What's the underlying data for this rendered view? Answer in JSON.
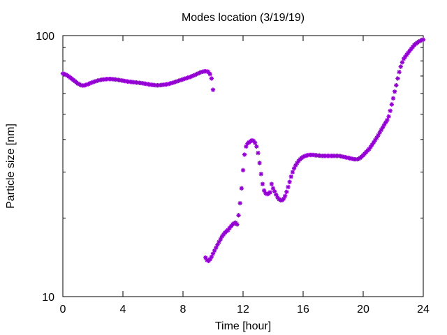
{
  "chart_data": {
    "type": "scatter",
    "title": "Modes location (3/19/19)",
    "xlabel": "Time [hour]",
    "ylabel": "Particle size [nm]",
    "xlim": [
      0,
      24
    ],
    "ylim": [
      10,
      100
    ],
    "yscale": "log",
    "xticks": [
      0,
      4,
      8,
      12,
      16,
      20,
      24
    ],
    "xtick_labels": [
      "0",
      "4",
      "8",
      "12",
      "16",
      "20",
      "24"
    ],
    "yticks": [
      10,
      100
    ],
    "ytick_labels": [
      "10",
      "100"
    ],
    "grid": false,
    "legend": "none",
    "marker_color": "#9400d3",
    "series": [
      {
        "points": [
          [
            0.0,
            71.5
          ],
          [
            0.1,
            71.3
          ],
          [
            0.2,
            70.8
          ],
          [
            0.3,
            70.3
          ],
          [
            0.4,
            69.7
          ],
          [
            0.5,
            69.0
          ],
          [
            0.6,
            68.3
          ],
          [
            0.7,
            67.6
          ],
          [
            0.8,
            66.9
          ],
          [
            0.9,
            66.2
          ],
          [
            1.0,
            65.5
          ],
          [
            1.1,
            65.0
          ],
          [
            1.2,
            64.6
          ],
          [
            1.3,
            64.4
          ],
          [
            1.4,
            64.4
          ],
          [
            1.5,
            64.6
          ],
          [
            1.6,
            64.9
          ],
          [
            1.7,
            65.2
          ],
          [
            1.8,
            65.6
          ],
          [
            1.9,
            66.0
          ],
          [
            2.0,
            66.3
          ],
          [
            2.1,
            66.6
          ],
          [
            2.2,
            66.9
          ],
          [
            2.3,
            67.2
          ],
          [
            2.4,
            67.4
          ],
          [
            2.5,
            67.6
          ],
          [
            2.6,
            67.8
          ],
          [
            2.7,
            67.9
          ],
          [
            2.8,
            68.0
          ],
          [
            2.9,
            68.1
          ],
          [
            3.0,
            68.2
          ],
          [
            3.1,
            68.2
          ],
          [
            3.2,
            68.2
          ],
          [
            3.3,
            68.1
          ],
          [
            3.4,
            68.0
          ],
          [
            3.5,
            67.9
          ],
          [
            3.6,
            67.8
          ],
          [
            3.7,
            67.6
          ],
          [
            3.8,
            67.5
          ],
          [
            3.9,
            67.3
          ],
          [
            4.0,
            67.2
          ],
          [
            4.1,
            67.0
          ],
          [
            4.2,
            66.9
          ],
          [
            4.3,
            66.7
          ],
          [
            4.4,
            66.6
          ],
          [
            4.5,
            66.5
          ],
          [
            4.6,
            66.4
          ],
          [
            4.7,
            66.3
          ],
          [
            4.8,
            66.2
          ],
          [
            4.9,
            66.1
          ],
          [
            5.0,
            66.0
          ],
          [
            5.1,
            65.9
          ],
          [
            5.2,
            65.8
          ],
          [
            5.3,
            65.7
          ],
          [
            5.4,
            65.5
          ],
          [
            5.5,
            65.4
          ],
          [
            5.6,
            65.2
          ],
          [
            5.7,
            65.1
          ],
          [
            5.8,
            64.9
          ],
          [
            5.9,
            64.8
          ],
          [
            6.0,
            64.7
          ],
          [
            6.1,
            64.6
          ],
          [
            6.2,
            64.5
          ],
          [
            6.3,
            64.5
          ],
          [
            6.4,
            64.5
          ],
          [
            6.5,
            64.6
          ],
          [
            6.6,
            64.7
          ],
          [
            6.7,
            64.8
          ],
          [
            6.8,
            64.9
          ],
          [
            6.9,
            65.0
          ],
          [
            7.0,
            65.2
          ],
          [
            7.1,
            65.4
          ],
          [
            7.2,
            65.7
          ],
          [
            7.3,
            65.9
          ],
          [
            7.4,
            66.2
          ],
          [
            7.5,
            66.5
          ],
          [
            7.6,
            66.8
          ],
          [
            7.7,
            67.1
          ],
          [
            7.8,
            67.4
          ],
          [
            7.9,
            67.7
          ],
          [
            8.0,
            68.0
          ],
          [
            8.1,
            68.3
          ],
          [
            8.2,
            68.6
          ],
          [
            8.3,
            68.9
          ],
          [
            8.4,
            69.2
          ],
          [
            8.5,
            69.5
          ],
          [
            8.6,
            69.9
          ],
          [
            8.7,
            70.3
          ],
          [
            8.8,
            70.7
          ],
          [
            8.9,
            71.1
          ],
          [
            9.0,
            71.6
          ],
          [
            9.1,
            72.0
          ],
          [
            9.2,
            72.4
          ],
          [
            9.3,
            72.7
          ],
          [
            9.4,
            72.9
          ],
          [
            9.5,
            73.0
          ],
          [
            9.6,
            72.9
          ],
          [
            9.7,
            72.4
          ],
          [
            9.8,
            71.2
          ],
          [
            9.9,
            68.5
          ],
          [
            10.0,
            62.0
          ],
          [
            9.5,
            14.1
          ],
          [
            9.6,
            13.8
          ],
          [
            9.7,
            13.7
          ],
          [
            9.8,
            13.9
          ],
          [
            9.9,
            14.2
          ],
          [
            10.0,
            14.6
          ],
          [
            10.1,
            15.0
          ],
          [
            10.2,
            15.4
          ],
          [
            10.3,
            15.8
          ],
          [
            10.4,
            16.2
          ],
          [
            10.5,
            16.6
          ],
          [
            10.6,
            17.0
          ],
          [
            10.7,
            17.3
          ],
          [
            10.8,
            17.6
          ],
          [
            10.9,
            17.8
          ],
          [
            11.0,
            18.0
          ],
          [
            11.1,
            18.3
          ],
          [
            11.2,
            18.6
          ],
          [
            11.3,
            18.9
          ],
          [
            11.4,
            19.1
          ],
          [
            11.5,
            19.2
          ],
          [
            11.6,
            18.9
          ],
          [
            11.7,
            20.5
          ],
          [
            11.8,
            22.8
          ],
          [
            11.9,
            26.0
          ],
          [
            12.0,
            30.5
          ],
          [
            12.1,
            35.0
          ],
          [
            12.2,
            37.6
          ],
          [
            12.3,
            38.6
          ],
          [
            12.4,
            39.0
          ],
          [
            12.5,
            39.4
          ],
          [
            12.6,
            39.7
          ],
          [
            12.7,
            39.5
          ],
          [
            12.8,
            38.8
          ],
          [
            12.9,
            37.6
          ],
          [
            13.0,
            35.5
          ],
          [
            13.1,
            32.5
          ],
          [
            13.2,
            29.5
          ],
          [
            13.3,
            27.0
          ],
          [
            13.4,
            25.5
          ],
          [
            13.5,
            24.9
          ],
          [
            13.6,
            24.7
          ],
          [
            13.7,
            24.8
          ],
          [
            13.8,
            25.1
          ],
          [
            13.9,
            27.0
          ],
          [
            14.0,
            26.0
          ],
          [
            14.1,
            25.3
          ],
          [
            14.2,
            24.6
          ],
          [
            14.3,
            24.0
          ],
          [
            14.4,
            23.6
          ],
          [
            14.5,
            23.4
          ],
          [
            14.6,
            23.4
          ],
          [
            14.7,
            23.7
          ],
          [
            14.8,
            24.3
          ],
          [
            14.9,
            25.2
          ],
          [
            15.0,
            26.3
          ],
          [
            15.1,
            27.5
          ],
          [
            15.2,
            28.8
          ],
          [
            15.3,
            30.0
          ],
          [
            15.4,
            31.0
          ],
          [
            15.5,
            31.8
          ],
          [
            15.6,
            32.5
          ],
          [
            15.7,
            33.1
          ],
          [
            15.8,
            33.6
          ],
          [
            15.9,
            34.0
          ],
          [
            16.0,
            34.3
          ],
          [
            16.1,
            34.5
          ],
          [
            16.2,
            34.7
          ],
          [
            16.3,
            34.8
          ],
          [
            16.4,
            34.9
          ],
          [
            16.5,
            34.9
          ],
          [
            16.6,
            34.9
          ],
          [
            16.7,
            34.9
          ],
          [
            16.8,
            34.8
          ],
          [
            16.9,
            34.8
          ],
          [
            17.0,
            34.7
          ],
          [
            17.1,
            34.7
          ],
          [
            17.2,
            34.6
          ],
          [
            17.3,
            34.6
          ],
          [
            17.4,
            34.6
          ],
          [
            17.5,
            34.6
          ],
          [
            17.6,
            34.6
          ],
          [
            17.7,
            34.6
          ],
          [
            17.8,
            34.6
          ],
          [
            17.9,
            34.6
          ],
          [
            18.0,
            34.6
          ],
          [
            18.1,
            34.6
          ],
          [
            18.2,
            34.6
          ],
          [
            18.3,
            34.6
          ],
          [
            18.4,
            34.6
          ],
          [
            18.5,
            34.5
          ],
          [
            18.6,
            34.4
          ],
          [
            18.7,
            34.3
          ],
          [
            18.8,
            34.2
          ],
          [
            18.9,
            34.1
          ],
          [
            19.0,
            34.0
          ],
          [
            19.1,
            33.9
          ],
          [
            19.2,
            33.8
          ],
          [
            19.3,
            33.7
          ],
          [
            19.4,
            33.6
          ],
          [
            19.5,
            33.6
          ],
          [
            19.6,
            33.6
          ],
          [
            19.7,
            33.7
          ],
          [
            19.8,
            34.0
          ],
          [
            19.9,
            34.4
          ],
          [
            20.0,
            34.8
          ],
          [
            20.1,
            35.3
          ],
          [
            20.2,
            35.8
          ],
          [
            20.3,
            36.3
          ],
          [
            20.4,
            36.8
          ],
          [
            20.5,
            37.5
          ],
          [
            20.6,
            38.2
          ],
          [
            20.7,
            39.0
          ],
          [
            20.8,
            39.8
          ],
          [
            20.9,
            40.6
          ],
          [
            21.0,
            41.5
          ],
          [
            21.1,
            42.5
          ],
          [
            21.2,
            43.5
          ],
          [
            21.3,
            44.5
          ],
          [
            21.4,
            45.5
          ],
          [
            21.5,
            46.5
          ],
          [
            21.6,
            47.5
          ],
          [
            21.7,
            49.0
          ],
          [
            21.8,
            51.5
          ],
          [
            21.9,
            54.5
          ],
          [
            22.0,
            57.5
          ],
          [
            22.1,
            61.0
          ],
          [
            22.2,
            64.5
          ],
          [
            22.3,
            68.5
          ],
          [
            22.4,
            72.5
          ],
          [
            22.5,
            76.0
          ],
          [
            22.6,
            79.0
          ],
          [
            22.7,
            81.5
          ],
          [
            22.8,
            83.0
          ],
          [
            22.9,
            84.5
          ],
          [
            23.0,
            86.0
          ],
          [
            23.1,
            87.5
          ],
          [
            23.2,
            89.0
          ],
          [
            23.3,
            90.5
          ],
          [
            23.4,
            92.0
          ],
          [
            23.5,
            93.0
          ],
          [
            23.6,
            94.0
          ],
          [
            23.7,
            94.8
          ],
          [
            23.8,
            95.5
          ],
          [
            23.9,
            96.2
          ],
          [
            24.0,
            96.5
          ]
        ]
      }
    ]
  }
}
